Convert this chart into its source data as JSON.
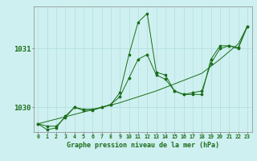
{
  "bg_color": "#cff0f0",
  "grid_color": "#b0dede",
  "line_color": "#1a6e1a",
  "title": "Graphe pression niveau de la mer (hPa)",
  "ylabel_ticks": [
    1030,
    1031
  ],
  "xlim": [
    -0.5,
    23.5
  ],
  "ylim": [
    1029.58,
    1031.72
  ],
  "hours": [
    0,
    1,
    2,
    3,
    4,
    5,
    6,
    7,
    8,
    9,
    10,
    11,
    12,
    13,
    14,
    15,
    16,
    17,
    18,
    19,
    20,
    21,
    22,
    23
  ],
  "line_main": [
    1029.72,
    1029.62,
    1029.65,
    1029.85,
    1030.0,
    1029.95,
    1029.95,
    1030.0,
    1030.05,
    1030.25,
    1030.9,
    1031.45,
    1031.6,
    1030.6,
    1030.55,
    1030.28,
    1030.22,
    1030.22,
    1030.22,
    1030.82,
    1031.05,
    1031.05,
    1031.0,
    1031.38
  ],
  "line_smooth": [
    1029.72,
    1029.68,
    1029.68,
    1029.83,
    1030.0,
    1029.97,
    1029.97,
    1030.0,
    1030.05,
    1030.18,
    1030.5,
    1030.82,
    1030.9,
    1030.55,
    1030.48,
    1030.28,
    1030.22,
    1030.25,
    1030.28,
    1030.75,
    1031.0,
    1031.05,
    1031.02,
    1031.38
  ],
  "line_trend": [
    1029.72,
    1029.76,
    1029.8,
    1029.84,
    1029.88,
    1029.92,
    1029.96,
    1030.0,
    1030.04,
    1030.08,
    1030.13,
    1030.18,
    1030.23,
    1030.28,
    1030.34,
    1030.4,
    1030.46,
    1030.52,
    1030.58,
    1030.7,
    1030.82,
    1030.95,
    1031.08,
    1031.38
  ]
}
